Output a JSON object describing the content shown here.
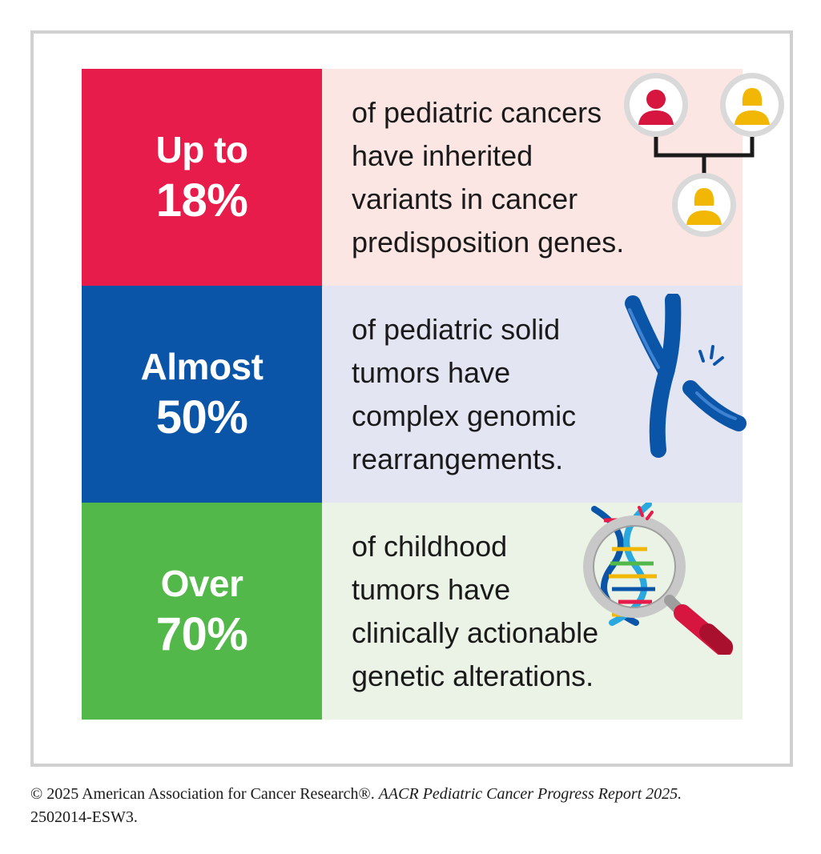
{
  "stats": [
    {
      "lead": "Up to",
      "value": "18%",
      "lines": [
        "of pediatric cancers",
        "have inherited",
        "variants in cancer",
        "predisposition genes."
      ],
      "stat_color": "#e81c4a",
      "bg_color": "#fce6e3",
      "icon": "family-tree-icon"
    },
    {
      "lead": "Almost",
      "value": "50%",
      "lines": [
        "of pediatric solid",
        "tumors have",
        "complex genomic",
        "rearrangements."
      ],
      "stat_color": "#0a55a8",
      "bg_color": "#e3e5f3",
      "icon": "broken-chromosome-icon"
    },
    {
      "lead": "Over",
      "value": "70%",
      "lines": [
        "of childhood",
        "tumors have",
        "clinically actionable",
        "genetic alterations."
      ],
      "stat_color": "#52b849",
      "bg_color": "#eaf3e6",
      "icon": "dna-magnifier-icon"
    }
  ],
  "footer": {
    "line1_plain": "© 2025 American Association for Cancer Research®.",
    "line1_italic": "AACR Pediatric Cancer Progress Report 2025.",
    "line2": "2502014-ESW3."
  }
}
